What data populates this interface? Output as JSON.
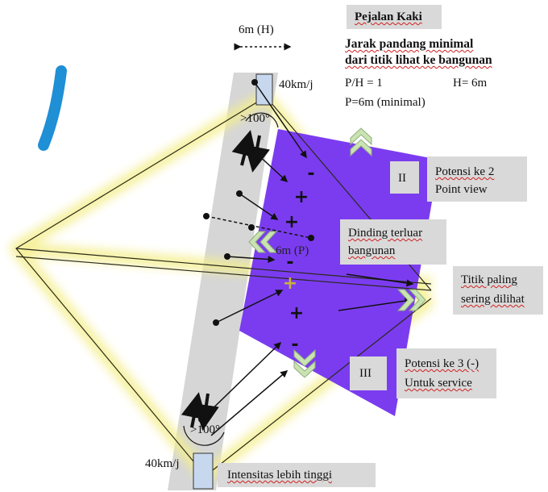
{
  "legend": {
    "title": "Pejalan Kaki",
    "heading_line1": "Jarak pandang minimal",
    "heading_line2": "dari titik lihat ke bangunan",
    "ratio": "P/H = 1",
    "h_value": "H= 6m",
    "p_value": "P=6m (minimal)"
  },
  "labels": {
    "dim_h": "6m (H)",
    "speed_top": "40km/j",
    "speed_bottom": "40km/j",
    "angle_top": ">100°",
    "angle_bottom": ">100°",
    "dim_p": "6m (P)",
    "zone_ii_numeral": "II",
    "zone_ii_line1": "Potensi ke 2",
    "zone_ii_line2": "Point view",
    "wall_line1": "Dinding terluar",
    "wall_line2": "bangunan",
    "focus_line1": "Titik paling",
    "focus_line2": "sering dilihat",
    "zone_iii_numeral": "III",
    "zone_iii_line1": "Potensi ke 3 (-)",
    "zone_iii_line2": "Untuk service",
    "intensity": "Intensitas lebih tinggi"
  },
  "signs": {
    "s1": "-",
    "s2": "+",
    "s3": "+",
    "s4": "-",
    "s5": "+",
    "s6": "+",
    "s7": "-"
  },
  "colors": {
    "building": "#7b3cf0",
    "road": "#d6d6d6",
    "glow": "#f4ee8c",
    "chevron": "#c9e3b2",
    "vehicle": "#c7d8ee",
    "water": "#1f8fd6",
    "label_box": "#d9d9d9"
  }
}
